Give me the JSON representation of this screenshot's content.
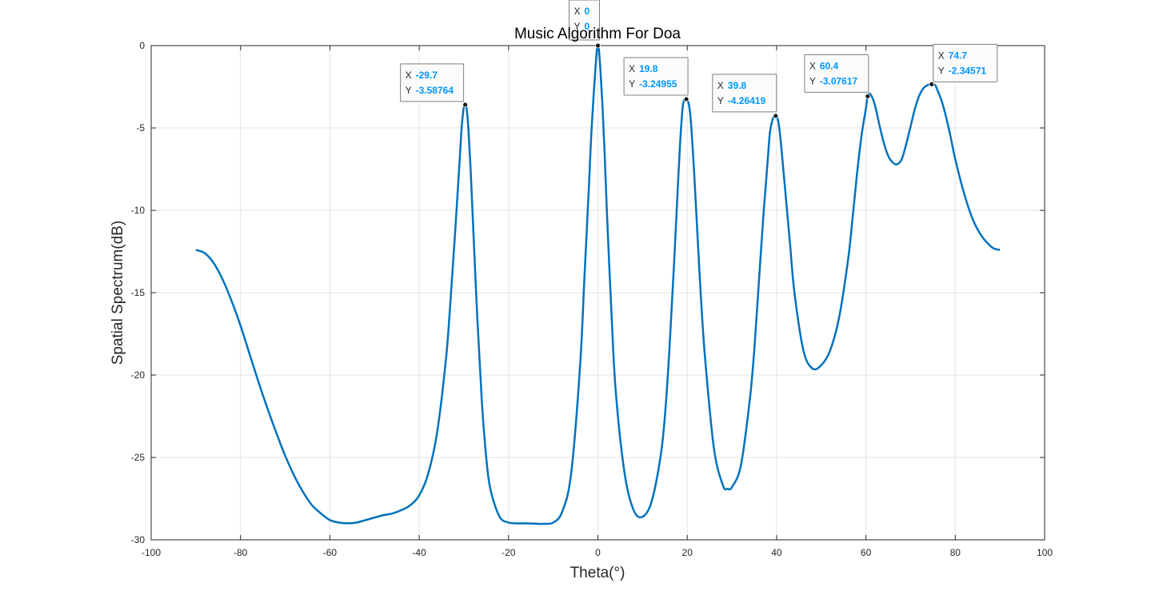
{
  "chart_data": {
    "type": "line",
    "title": "Music Algorithm For Doa",
    "xlabel": "Theta(°)",
    "ylabel": "Spatial Spectrum(dB)",
    "xlim": [
      -100,
      100
    ],
    "ylim": [
      -30,
      0
    ],
    "x_ticks": [
      -100,
      -80,
      -60,
      -40,
      -20,
      0,
      20,
      40,
      60,
      80,
      100
    ],
    "y_ticks": [
      0,
      -5,
      -10,
      -15,
      -20,
      -25,
      -30
    ],
    "x_tick_labels": [
      "-100",
      "-80",
      "-60",
      "-40",
      "-20",
      "0",
      "20",
      "40",
      "60",
      "80",
      "100"
    ],
    "y_tick_labels": [
      "0",
      "-5",
      "-10",
      "-15",
      "-20",
      "-25",
      "-30"
    ],
    "grid": true,
    "line_color": "#0072BD",
    "datatip_value_color": "#0096FF",
    "series": [
      {
        "x": [
          -90,
          -88,
          -86,
          -84,
          -82,
          -80,
          -78,
          -76,
          -74,
          -72,
          -70,
          -68,
          -66,
          -64,
          -62,
          -60,
          -58,
          -56,
          -54,
          -52,
          -50,
          -48,
          -46,
          -44,
          -42,
          -40,
          -38,
          -36,
          -34,
          -33,
          -32,
          -31,
          -30.5,
          -30,
          -29.7,
          -29.4,
          -29,
          -28.5,
          -28,
          -27,
          -26,
          -25,
          -24,
          -22,
          -20,
          -18,
          -16,
          -14,
          -12,
          -10,
          -8,
          -6,
          -4,
          -3,
          -2,
          -1.5,
          -1,
          -0.5,
          -0.2,
          0,
          0.2,
          0.5,
          1,
          1.5,
          2,
          3,
          4,
          6,
          8,
          10,
          12,
          14,
          15,
          16,
          17,
          18,
          18.5,
          19,
          19.4,
          19.8,
          20.2,
          20.6,
          21,
          21.5,
          22,
          23,
          24,
          26,
          28,
          29,
          30,
          32,
          34,
          35,
          36,
          37,
          38,
          38.5,
          39,
          39.4,
          39.8,
          40.2,
          40.6,
          41,
          42,
          43,
          44,
          46,
          48,
          50,
          52,
          54,
          56,
          57,
          58,
          59,
          60,
          60.4,
          61,
          62,
          63,
          64,
          65,
          66,
          67,
          68,
          69,
          70,
          71,
          72,
          73,
          74,
          74.7,
          75.5,
          76,
          77,
          78,
          79,
          80,
          82,
          84,
          86,
          88,
          89,
          90
        ],
        "y": [
          -12.4,
          -12.6,
          -13.2,
          -14.2,
          -15.5,
          -17.0,
          -18.7,
          -20.4,
          -22.0,
          -23.5,
          -24.9,
          -26.1,
          -27.1,
          -27.9,
          -28.4,
          -28.8,
          -28.95,
          -29.0,
          -28.95,
          -28.8,
          -28.65,
          -28.5,
          -28.4,
          -28.2,
          -27.9,
          -27.3,
          -26.0,
          -23.5,
          -19.0,
          -15.5,
          -11.5,
          -7.2,
          -5.0,
          -3.7,
          -3.59,
          -3.8,
          -5.0,
          -7.5,
          -10.5,
          -16.5,
          -21.5,
          -25.0,
          -27.0,
          -28.6,
          -28.95,
          -29.0,
          -29.0,
          -29.02,
          -29.03,
          -28.95,
          -28.3,
          -26.0,
          -19.5,
          -14.0,
          -8.5,
          -5.5,
          -3.2,
          -1.2,
          -0.2,
          0,
          -0.2,
          -1.2,
          -3.5,
          -6.5,
          -10.0,
          -16.0,
          -21.0,
          -26.0,
          -28.2,
          -28.6,
          -27.7,
          -25.0,
          -22.5,
          -18.5,
          -13.5,
          -8.0,
          -5.5,
          -3.7,
          -3.25,
          -3.25,
          -3.4,
          -4.0,
          -5.3,
          -7.5,
          -10.0,
          -15.0,
          -19.0,
          -24.5,
          -26.7,
          -26.9,
          -26.8,
          -25.5,
          -21.5,
          -18.5,
          -14.5,
          -10.5,
          -7.0,
          -5.3,
          -4.6,
          -4.3,
          -4.26,
          -4.4,
          -5.0,
          -6.0,
          -9.0,
          -12.0,
          -15.0,
          -18.5,
          -19.6,
          -19.4,
          -18.5,
          -16.5,
          -13.0,
          -10.5,
          -7.8,
          -5.5,
          -3.8,
          -3.08,
          -2.95,
          -3.6,
          -4.8,
          -5.9,
          -6.7,
          -7.1,
          -7.2,
          -6.9,
          -6.0,
          -4.9,
          -3.8,
          -3.0,
          -2.55,
          -2.38,
          -2.35,
          -2.4,
          -2.7,
          -3.4,
          -4.4,
          -5.6,
          -6.9,
          -9.0,
          -10.6,
          -11.6,
          -12.2,
          -12.35,
          -12.4
        ]
      }
    ],
    "datatips": [
      {
        "x": -29.7,
        "y": -3.58764,
        "x_text": "-29.7",
        "y_text": "-3.58764",
        "x_key": "X",
        "y_key": "Y"
      },
      {
        "x": 0,
        "y": 0,
        "x_text": "0",
        "y_text": "0",
        "x_key": "X",
        "y_key": "Y"
      },
      {
        "x": 19.8,
        "y": -3.24955,
        "x_text": "19.8",
        "y_text": "-3.24955",
        "x_key": "X",
        "y_key": "Y"
      },
      {
        "x": 39.8,
        "y": -4.26419,
        "x_text": "39.8",
        "y_text": "-4.26419",
        "x_key": "X",
        "y_key": "Y"
      },
      {
        "x": 60.4,
        "y": -3.07617,
        "x_text": "60.4",
        "y_text": "-3.07617",
        "x_key": "X",
        "y_key": "Y"
      },
      {
        "x": 74.7,
        "y": -2.34571,
        "x_text": "74.7",
        "y_text": "-2.34571",
        "x_key": "X",
        "y_key": "Y"
      }
    ]
  }
}
